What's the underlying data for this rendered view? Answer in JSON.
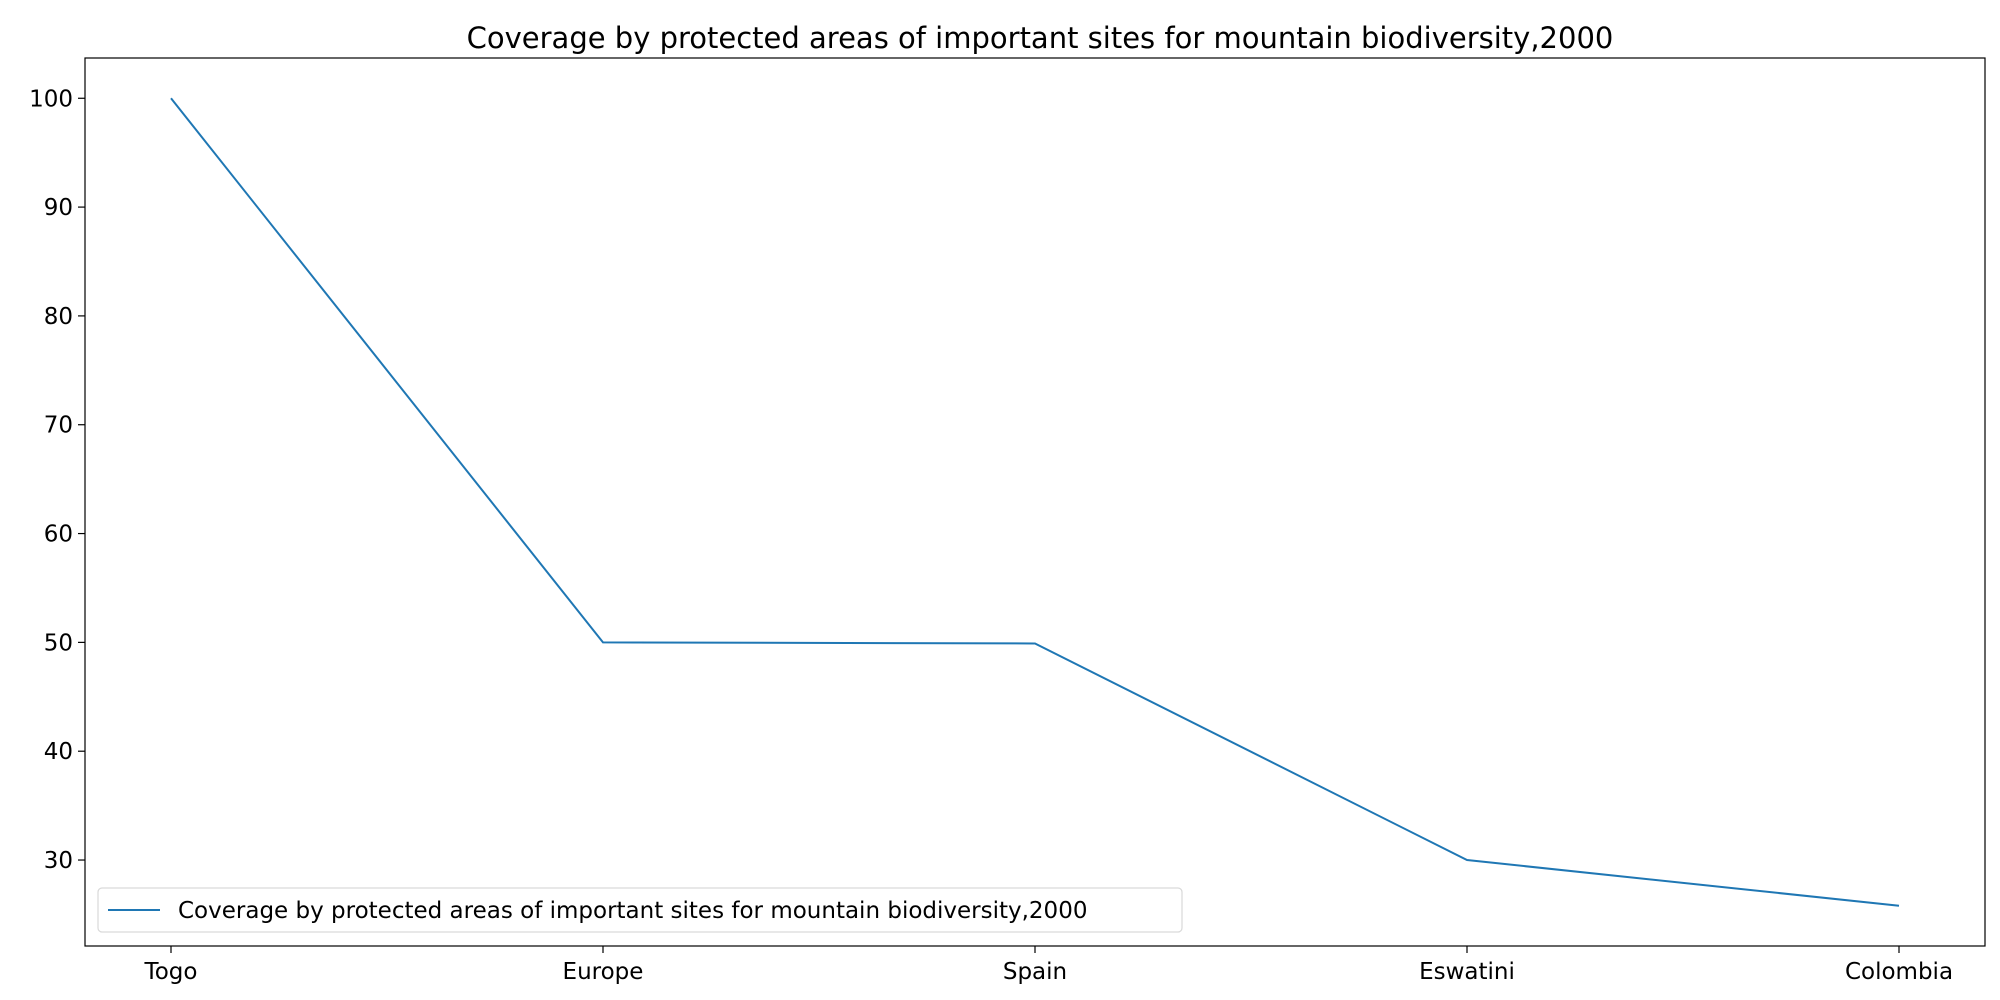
{
  "chart_data": {
    "type": "line",
    "title": "Coverage by protected areas of important sites for mountain biodiversity,2000",
    "xlabel": "",
    "ylabel": "",
    "categories": [
      "Togo",
      "Europe",
      "Spain",
      "Eswatini",
      "Colombia"
    ],
    "series": [
      {
        "name": "Coverage by protected areas of important sites for mountain biodiversity,2000",
        "values": [
          100,
          50.0,
          49.9,
          30.0,
          25.8
        ],
        "color": "#1f77b4"
      }
    ],
    "ylim": [
      22.1,
      103.7
    ],
    "yticks": [
      30,
      40,
      50,
      60,
      70,
      80,
      90,
      100
    ],
    "grid": false,
    "legend_position": "lower-left"
  }
}
